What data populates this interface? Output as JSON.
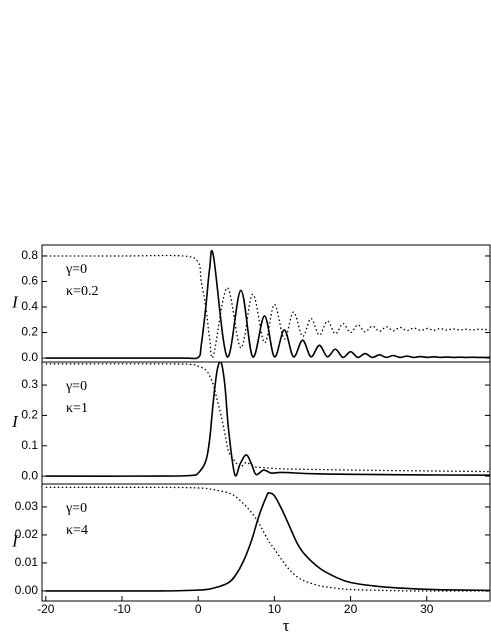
{
  "chart_data": [
    {
      "type": "line",
      "ylabel": "I",
      "annotations": [
        "γ=0",
        "κ=0.2"
      ],
      "xlim": [
        -20.5,
        38.3
      ],
      "ylim": [
        -0.031,
        0.886
      ],
      "yticks": [
        {
          "value": 0,
          "label": "0.0"
        },
        {
          "value": 0.2,
          "label": "0.2"
        },
        {
          "value": 0.4,
          "label": "0.4"
        },
        {
          "value": 0.6,
          "label": "0.6"
        },
        {
          "value": 0.8,
          "label": "0.8"
        }
      ],
      "x": [
        -20,
        -10,
        -2,
        0,
        0.4,
        1.0,
        1.5,
        2.0,
        3.8,
        5.6,
        7.15,
        8.7,
        10.0,
        11.3,
        12.5,
        13.7,
        14.8,
        15.9,
        16.95,
        18.0,
        19.0,
        20.0,
        20.95,
        21.9,
        22.85,
        23.8,
        24.7,
        25.6,
        26.5,
        27.4,
        28.3,
        29.2,
        30.05,
        30.9,
        31.75,
        32.6,
        33.45,
        34.3,
        35.15,
        36.0,
        36.8,
        38.3
      ],
      "series": [
        {
          "style": "solid",
          "color": "#000000",
          "values": [
            0,
            0,
            0,
            0.005,
            0.1,
            0.4,
            0.7,
            0.8,
            0.01,
            0.53,
            0.01,
            0.33,
            0.01,
            0.22,
            0.01,
            0.14,
            0.01,
            0.1,
            0.01,
            0.07,
            0.005,
            0.05,
            0.005,
            0.035,
            0.005,
            0.025,
            0.005,
            0.02,
            0.005,
            0.015,
            0.005,
            0.012,
            0.005,
            0.01,
            0.005,
            0.008,
            0.005,
            0.007,
            0.005,
            0.006,
            0.005,
            0.005
          ]
        },
        {
          "style": "dotted",
          "color": "#000000",
          "values": [
            0.8,
            0.8,
            0.8,
            0.75,
            0.6,
            0.4,
            0.15,
            0.02,
            0.55,
            0.08,
            0.5,
            0.12,
            0.42,
            0.15,
            0.36,
            0.17,
            0.31,
            0.18,
            0.29,
            0.19,
            0.27,
            0.2,
            0.26,
            0.205,
            0.25,
            0.21,
            0.245,
            0.213,
            0.24,
            0.215,
            0.235,
            0.217,
            0.232,
            0.218,
            0.23,
            0.219,
            0.228,
            0.22,
            0.226,
            0.22,
            0.225,
            0.222
          ]
        }
      ]
    },
    {
      "type": "line",
      "ylabel": "I",
      "annotations": [
        "γ=0",
        "κ=1"
      ],
      "xlim": [
        -20.5,
        38.3
      ],
      "ylim": [
        -0.026,
        0.376
      ],
      "yticks": [
        {
          "value": 0,
          "label": "0.0"
        },
        {
          "value": 0.1,
          "label": "0.1"
        },
        {
          "value": 0.2,
          "label": "0.2"
        },
        {
          "value": 0.3,
          "label": "0.3"
        }
      ],
      "x": [
        -20,
        -5,
        -1,
        0,
        1,
        1.5,
        2,
        2.5,
        3,
        3.5,
        4,
        4.8,
        5.5,
        6.3,
        7,
        7.6,
        8.6,
        9.6,
        11,
        15,
        20,
        30,
        38.3
      ],
      "series": [
        {
          "style": "solid",
          "color": "#000000",
          "values": [
            0,
            0,
            0.002,
            0.01,
            0.05,
            0.12,
            0.25,
            0.35,
            0.375,
            0.3,
            0.15,
            0.005,
            0.04,
            0.07,
            0.04,
            0.005,
            0.02,
            0.01,
            0.012,
            0.008,
            0.006,
            0.004,
            0.003
          ]
        },
        {
          "style": "dotted",
          "color": "#000000",
          "values": [
            0.37,
            0.37,
            0.368,
            0.362,
            0.35,
            0.33,
            0.3,
            0.25,
            0.2,
            0.14,
            0.08,
            0.05,
            0.03,
            0.045,
            0.035,
            0.03,
            0.028,
            0.026,
            0.024,
            0.022,
            0.02,
            0.017,
            0.015
          ]
        }
      ]
    },
    {
      "type": "line",
      "ylabel": "I",
      "annotations": [
        "γ=0",
        "κ=4"
      ],
      "xlabel": "τ",
      "xlim": [
        -20.5,
        38.3
      ],
      "ylim": [
        -0.0036,
        0.0382
      ],
      "xticks": [
        -20,
        -10,
        0,
        10,
        20,
        30
      ],
      "yticks": [
        {
          "value": 0,
          "label": "0.00"
        },
        {
          "value": 0.01,
          "label": "0.01"
        },
        {
          "value": 0.02,
          "label": "0.02"
        },
        {
          "value": 0.03,
          "label": "0.03"
        }
      ],
      "x": [
        -20,
        -5,
        0,
        2,
        4,
        5,
        6,
        7,
        8,
        9,
        9.3,
        10,
        11,
        12,
        13,
        14,
        16,
        18,
        20,
        24,
        28,
        32,
        38.3
      ],
      "series": [
        {
          "style": "solid",
          "color": "#000000",
          "values": [
            0,
            0,
            0.0003,
            0.001,
            0.003,
            0.006,
            0.011,
            0.018,
            0.027,
            0.034,
            0.035,
            0.034,
            0.029,
            0.023,
            0.017,
            0.013,
            0.008,
            0.005,
            0.003,
            0.0015,
            0.0008,
            0.0004,
            0.0002
          ]
        },
        {
          "style": "dotted",
          "color": "#000000",
          "values": [
            0.037,
            0.037,
            0.0368,
            0.0362,
            0.035,
            0.0335,
            0.031,
            0.028,
            0.024,
            0.019,
            0.0175,
            0.015,
            0.011,
            0.0075,
            0.005,
            0.0035,
            0.0018,
            0.001,
            0.0005,
            0.0002,
            0,
            0,
            0
          ]
        }
      ]
    }
  ]
}
